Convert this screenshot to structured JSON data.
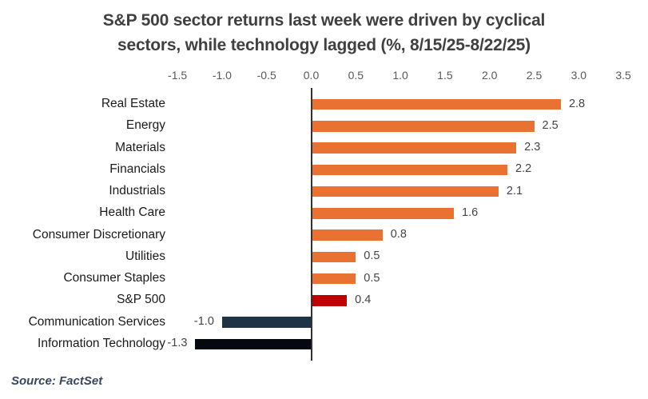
{
  "title_lines": [
    "S&P 500 sector returns last week were driven by cyclical",
    "sectors, while technology lagged (%, 8/15/25-8/22/25)"
  ],
  "source": "Source: FactSet",
  "chart_data": {
    "type": "bar",
    "orientation": "horizontal",
    "title": "S&P 500 sector returns last week were driven by cyclical sectors, while technology lagged (%, 8/15/25-8/22/25)",
    "xlabel": "",
    "ylabel": "",
    "xlim": [
      -1.5,
      3.5
    ],
    "x_ticks": [
      "-1.5",
      "-1.0",
      "-0.5",
      "0.0",
      "0.5",
      "1.0",
      "1.5",
      "2.0",
      "2.5",
      "3.0",
      "3.5"
    ],
    "x_axis_position": "top",
    "grid": false,
    "legend": "none",
    "data_labels": true,
    "categories": [
      "Real Estate",
      "Energy",
      "Materials",
      "Financials",
      "Industrials",
      "Health Care",
      "Consumer Discretionary",
      "Utilities",
      "Consumer Staples",
      "S&P 500",
      "Communication Services",
      "Information Technology"
    ],
    "values": [
      2.8,
      2.5,
      2.3,
      2.2,
      2.1,
      1.6,
      0.8,
      0.5,
      0.5,
      0.4,
      -1.0,
      -1.3
    ],
    "value_labels": [
      "2.8",
      "2.5",
      "2.3",
      "2.2",
      "2.1",
      "1.6",
      "0.8",
      "0.5",
      "0.5",
      "0.4",
      "-1.0",
      "-1.3"
    ],
    "bar_colors": [
      "#E97132",
      "#E97132",
      "#E97132",
      "#E97132",
      "#E97132",
      "#E97132",
      "#E97132",
      "#E97132",
      "#E97132",
      "#C00000",
      "#1F3347",
      "#06080F"
    ]
  },
  "colors": {
    "positive_sector": "#E97132",
    "sp500_benchmark": "#C00000",
    "communication_services": "#1F3347",
    "information_technology": "#06080F",
    "axis_line": "#333333",
    "tick_text": "#595959",
    "title_text": "#404040",
    "category_text": "#1A1A1A",
    "value_text": "#444444",
    "source_text": "#39465E"
  }
}
